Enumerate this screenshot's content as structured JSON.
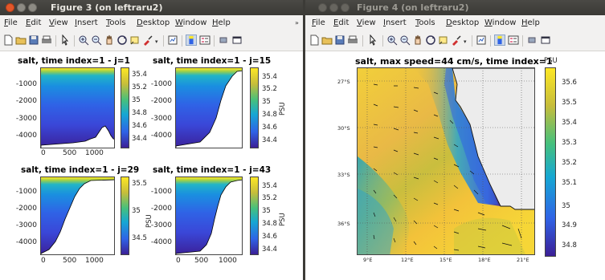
{
  "windows": [
    {
      "title": "Figure 3 (on leftraru2)",
      "menu": [
        {
          "pre": "",
          "u": "F",
          "post": "ile"
        },
        {
          "pre": "",
          "u": "E",
          "post": "dit"
        },
        {
          "pre": "",
          "u": "V",
          "post": "iew"
        },
        {
          "pre": "",
          "u": "I",
          "post": "nsert"
        },
        {
          "pre": "",
          "u": "T",
          "post": "ools"
        },
        {
          "pre": "",
          "u": "D",
          "post": "esktop"
        },
        {
          "pre": "",
          "u": "W",
          "post": "indow"
        },
        {
          "pre": "",
          "u": "H",
          "post": "elp"
        }
      ],
      "menu_overflow": "»",
      "plots": [
        {
          "title": "salt, time index=1 - j=1",
          "yticks": [
            "-1000",
            "-2000",
            "-3000",
            "-4000"
          ],
          "xticks": [
            "0",
            "500",
            "1000"
          ],
          "cticks": [
            "35.4",
            "35.2",
            "35",
            "34.8",
            "34.6",
            "34.4"
          ],
          "clabel": ""
        },
        {
          "title": "salt, time index=1 - j=15",
          "yticks": [
            "-1000",
            "-2000",
            "-3000",
            "-4000"
          ],
          "xticks": [],
          "cticks": [
            "35.4",
            "35.2",
            "35",
            "34.8",
            "34.6",
            "34.4"
          ],
          "clabel": "PSU"
        },
        {
          "title": "salt, time index=1 - j=29",
          "yticks": [
            "-1000",
            "-2000",
            "-3000",
            "-4000"
          ],
          "xticks": [
            "0",
            "500",
            "1000"
          ],
          "cticks": [
            "35.5",
            "35",
            "34.5"
          ],
          "clabel": "PSU"
        },
        {
          "title": "salt, time index=1 - j=43",
          "yticks": [
            "-1000",
            "-2000",
            "-3000",
            "-4000"
          ],
          "xticks": [
            "0",
            "500",
            "1000"
          ],
          "cticks": [
            "35.4",
            "35.2",
            "35",
            "34.8",
            "34.6",
            "34.4"
          ],
          "clabel": "PSU"
        }
      ]
    },
    {
      "title": "Figure 4 (on leftraru2)",
      "menu": [
        {
          "pre": "",
          "u": "F",
          "post": "ile"
        },
        {
          "pre": "",
          "u": "E",
          "post": "dit"
        },
        {
          "pre": "",
          "u": "V",
          "post": "iew"
        },
        {
          "pre": "",
          "u": "I",
          "post": "nsert"
        },
        {
          "pre": "",
          "u": "T",
          "post": "ools"
        },
        {
          "pre": "",
          "u": "D",
          "post": "esktop"
        },
        {
          "pre": "",
          "u": "W",
          "post": "indow"
        },
        {
          "pre": "",
          "u": "H",
          "post": "elp"
        }
      ],
      "map": {
        "title": "salt, max speed=44 cm/s, time index=1",
        "clabel": "PSU",
        "lat_ticks": [
          "27°S",
          "30°S",
          "33°S",
          "36°S"
        ],
        "lon_ticks": [
          "9°E",
          "12°E",
          "15°E",
          "18°E",
          "21°E"
        ],
        "cticks": [
          "35.6",
          "35.5",
          "35.4",
          "35.3",
          "35.2",
          "35.1",
          "35",
          "34.9",
          "34.8"
        ]
      }
    }
  ],
  "icons": [
    "new-file-icon",
    "open-folder-icon",
    "save-icon",
    "print-icon",
    "pointer-icon",
    "zoom-in-icon",
    "zoom-out-icon",
    "pan-icon",
    "rotate-icon",
    "data-cursor-icon",
    "brush-icon",
    "link-plot-icon",
    "colorbar-icon",
    "legend-icon",
    "hide-tools-icon",
    "show-tools-icon"
  ],
  "colors": {
    "titlebar": "#3c3b37",
    "close_button": "#e3572a",
    "colormap_low": "#3b1f96",
    "colormap_high": "#fde725"
  }
}
